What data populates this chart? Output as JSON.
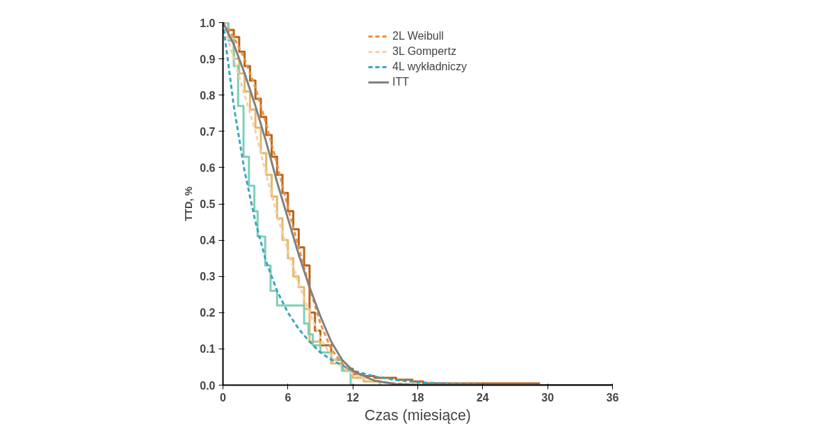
{
  "chart_data": {
    "type": "line",
    "xlabel": "Czas (miesiące)",
    "ylabel": "TTD, %",
    "xlim": [
      0,
      36
    ],
    "xticks": [
      0,
      6,
      12,
      18,
      24,
      30,
      36
    ],
    "ylim": [
      0,
      1.0
    ],
    "yticks": [
      {
        "value": 0,
        "label": "0.0"
      },
      {
        "value": 0.1,
        "label": "0.1"
      },
      {
        "value": 0.2,
        "label": "0.2"
      },
      {
        "value": 0.3,
        "label": "0.3"
      },
      {
        "value": 0.4,
        "label": "0.4"
      },
      {
        "value": 0.5,
        "label": "0.5"
      },
      {
        "value": 0.6,
        "label": "0.6"
      },
      {
        "value": 0.7,
        "label": "0.7"
      },
      {
        "value": 0.8,
        "label": "0.8"
      },
      {
        "value": 0.9,
        "label": "0.9"
      },
      {
        "value": 1.0,
        "label": "1.0"
      }
    ],
    "grid": false,
    "legend": "top",
    "marker": "none",
    "series": [
      {
        "type": "step",
        "color": "#b5651d",
        "line_style": "solid",
        "x": [
          0,
          0.5,
          1,
          1.5,
          2,
          2.5,
          3,
          3.5,
          4,
          4.5,
          5,
          5.5,
          6,
          6.5,
          7,
          7.5,
          8,
          8.5,
          9,
          10,
          11,
          12,
          13,
          14,
          16,
          17.5,
          18.5,
          29.3
        ],
        "values": [
          1,
          0.98,
          0.96,
          0.92,
          0.88,
          0.84,
          0.79,
          0.74,
          0.69,
          0.63,
          0.58,
          0.53,
          0.48,
          0.43,
          0.38,
          0.33,
          0.2,
          0.15,
          0.11,
          0.07,
          0.045,
          0.03,
          0.025,
          0.02,
          0.015,
          0.01,
          0.005,
          0.005
        ]
      },
      {
        "type": "step",
        "color": "#e0b96a",
        "line_style": "solid",
        "x": [
          0,
          0.5,
          1,
          1.5,
          2,
          2.5,
          3,
          3.5,
          4,
          4.5,
          5,
          5.5,
          6,
          6.5,
          7,
          7.5,
          8,
          9,
          10,
          11,
          12,
          13,
          14.5
        ],
        "values": [
          1,
          0.96,
          0.9,
          0.86,
          0.81,
          0.76,
          0.71,
          0.64,
          0.58,
          0.52,
          0.46,
          0.4,
          0.35,
          0.3,
          0.27,
          0.21,
          0.12,
          0.09,
          0.06,
          0.04,
          0.02,
          0.01,
          0
        ]
      },
      {
        "type": "step",
        "color": "#7dcfb6",
        "line_style": "solid",
        "x": [
          0,
          0.5,
          1.0,
          1.4,
          1.9,
          2.4,
          2.9,
          3.2,
          3.9,
          4.4,
          5.0,
          7.5,
          7.9,
          8.3,
          9.0,
          10.0,
          11.0,
          11.8
        ],
        "values": [
          1,
          0.95,
          0.88,
          0.77,
          0.63,
          0.55,
          0.48,
          0.41,
          0.33,
          0.26,
          0.22,
          0.17,
          0.14,
          0.11,
          0.09,
          0.07,
          0.04,
          0
        ]
      },
      {
        "name": "2L Weibull",
        "color": "#f28e3c",
        "line_style": "dashed",
        "x": [
          0,
          1,
          2,
          3,
          4,
          5,
          6,
          7,
          8,
          9,
          10,
          11,
          12,
          14,
          16,
          18
        ],
        "values": [
          1.0,
          0.96,
          0.9,
          0.82,
          0.72,
          0.61,
          0.49,
          0.38,
          0.27,
          0.17,
          0.1,
          0.06,
          0.035,
          0.012,
          0.004,
          0.001
        ]
      },
      {
        "name": "3L Gompertz",
        "color": "#f9cfa8",
        "line_style": "dashed",
        "x": [
          0,
          1,
          2,
          3,
          4,
          5,
          6,
          7,
          8,
          9,
          10,
          11,
          12,
          14,
          16
        ],
        "values": [
          1,
          0.9,
          0.8,
          0.7,
          0.58,
          0.47,
          0.37,
          0.28,
          0.2,
          0.13,
          0.08,
          0.05,
          0.03,
          0.01,
          0.003
        ]
      },
      {
        "name": "4L wykładniczy",
        "color": "#3aa6c4",
        "line_style": "dashed",
        "x": [
          0,
          1,
          2,
          3,
          4,
          5,
          6,
          7,
          8,
          9,
          10,
          12,
          14,
          16,
          18,
          20,
          24
        ],
        "values": [
          1,
          0.77,
          0.59,
          0.45,
          0.34,
          0.26,
          0.2,
          0.155,
          0.12,
          0.09,
          0.07,
          0.04,
          0.024,
          0.014,
          0.008,
          0.005,
          0.002
        ]
      },
      {
        "name": "ITT",
        "color": "#808080",
        "line_style": "solid",
        "x": [
          0,
          1,
          2,
          3,
          4,
          5,
          6,
          7,
          8,
          9,
          10,
          11,
          12,
          14,
          16,
          18,
          20,
          36
        ],
        "values": [
          1.0,
          0.94,
          0.86,
          0.77,
          0.67,
          0.56,
          0.46,
          0.36,
          0.27,
          0.19,
          0.12,
          0.07,
          0.04,
          0.012,
          0.003,
          0.001,
          0,
          0
        ]
      }
    ]
  }
}
